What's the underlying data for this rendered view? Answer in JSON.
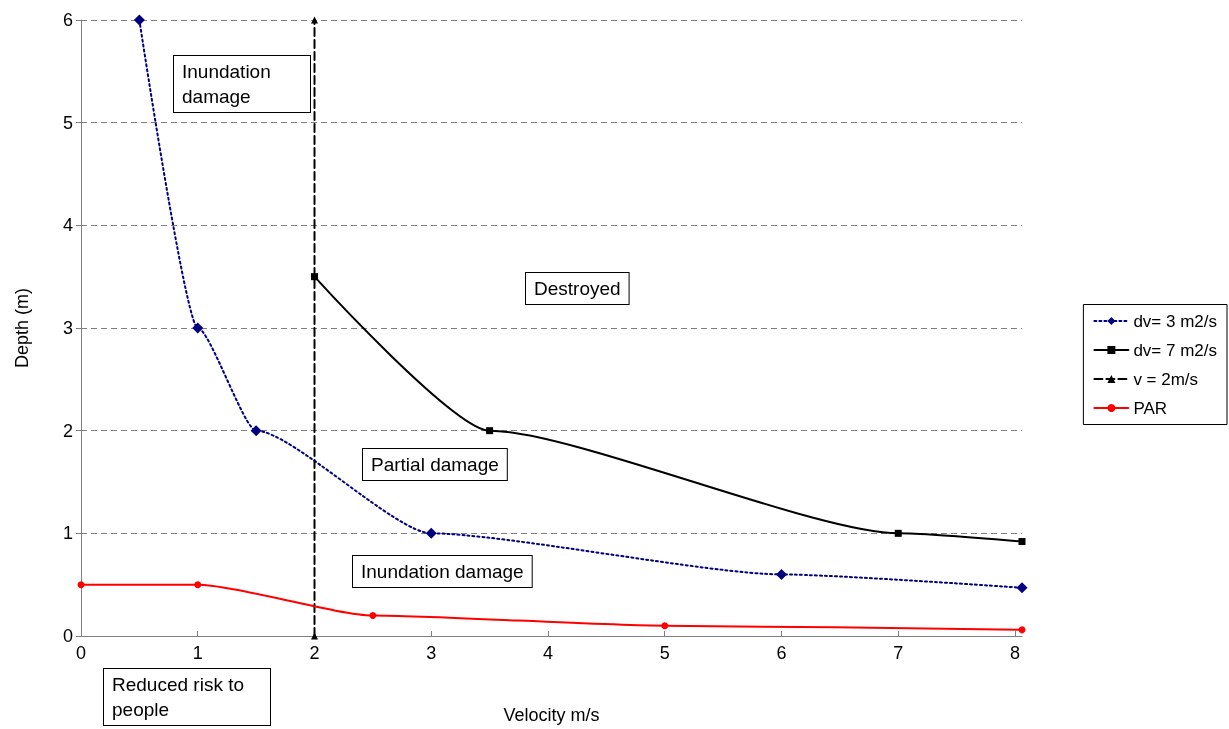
{
  "chart_data": {
    "type": "line",
    "xlabel": "Velocity m/s",
    "ylabel": "Depth (m)",
    "xlim": [
      0,
      8.06
    ],
    "xticks": [
      0,
      1,
      2,
      3,
      4,
      5,
      6,
      7,
      8
    ],
    "ylim": [
      0,
      6
    ],
    "yticks": [
      0,
      1,
      2,
      3,
      4,
      5,
      6
    ],
    "grid": "y",
    "legend": "right",
    "series": [
      {
        "name": "dv= 3 m2/s",
        "color": "#000080",
        "marker": "diamond",
        "line_style": "dotted",
        "x": [
          0.5,
          1,
          1.5,
          3,
          6,
          8.06
        ],
        "values": [
          6,
          3,
          2,
          1,
          0.6,
          0.47
        ]
      },
      {
        "name": "dv= 7 m2/s",
        "color": "#000000",
        "marker": "square",
        "line_style": "solid",
        "x": [
          2,
          3.5,
          7,
          8.06
        ],
        "values": [
          3.5,
          2,
          1,
          0.92
        ]
      },
      {
        "name": "v = 2m/s",
        "color": "#000000",
        "marker": "triangle",
        "line_style": "dashed",
        "x": [
          2,
          2
        ],
        "values": [
          0,
          6
        ]
      },
      {
        "name": "PAR",
        "color": "#ff0000",
        "marker": "circle",
        "line_style": "solid",
        "x": [
          0,
          1,
          2.5,
          5,
          8.06
        ],
        "values": [
          0.5,
          0.5,
          0.2,
          0.1,
          0.06
        ]
      }
    ],
    "annotations": [
      "Inundation damage",
      "Destroyed",
      "Partial damage",
      "Inundation damage",
      "Reduced risk to people"
    ]
  }
}
